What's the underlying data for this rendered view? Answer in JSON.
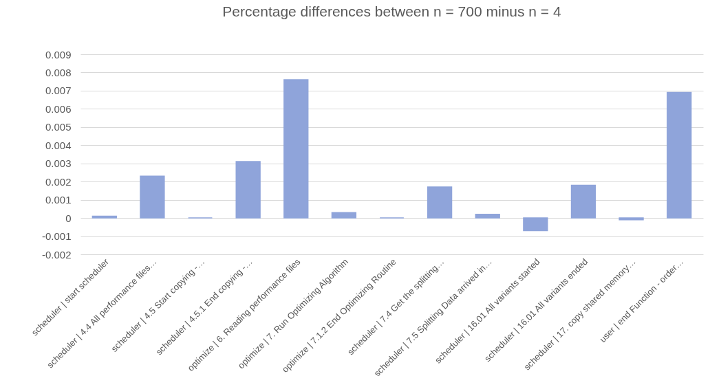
{
  "chart_data": {
    "type": "bar",
    "title": "Percentage  differences between n = 700 minus n = 4",
    "categories": [
      "scheduler  |  start scheduler",
      "scheduler  |  4.4 All performance files…",
      "scheduler  |  4.5 Start copying -…",
      "scheduler  |  4.5.1 End copying -…",
      "optimize  |  6. Reading performance files",
      "optimize  |  7. Run Optimizing Algorithm",
      "optimize  |  7.1.2 End Optimizing Routine",
      "scheduler  |  7.4 Get the splitting…",
      "scheduler  |  7.5 Splitting Data arrived in…",
      "scheduler  |  16.01 All variants started",
      "scheduler  |  16.01 All variants ended",
      "scheduler  |  17. copy shared memory…",
      "user  |  end Function - order…"
    ],
    "series": [
      {
        "color": "#8fa4da",
        "values": [
          0.0001,
          0.0023,
          0,
          0.0031,
          0.0076,
          0.0003,
          0,
          0.0017,
          0.0002,
          -0.0007,
          0.0018,
          -0.0001,
          0.0069
        ]
      }
    ],
    "ylim": [
      -0.002,
      0.009
    ],
    "yticks": [
      -0.002,
      -0.001,
      0,
      0.001,
      0.002,
      0.003,
      0.004,
      0.005,
      0.006,
      0.007,
      0.008,
      0.009
    ],
    "grid": "y",
    "legend": false
  }
}
